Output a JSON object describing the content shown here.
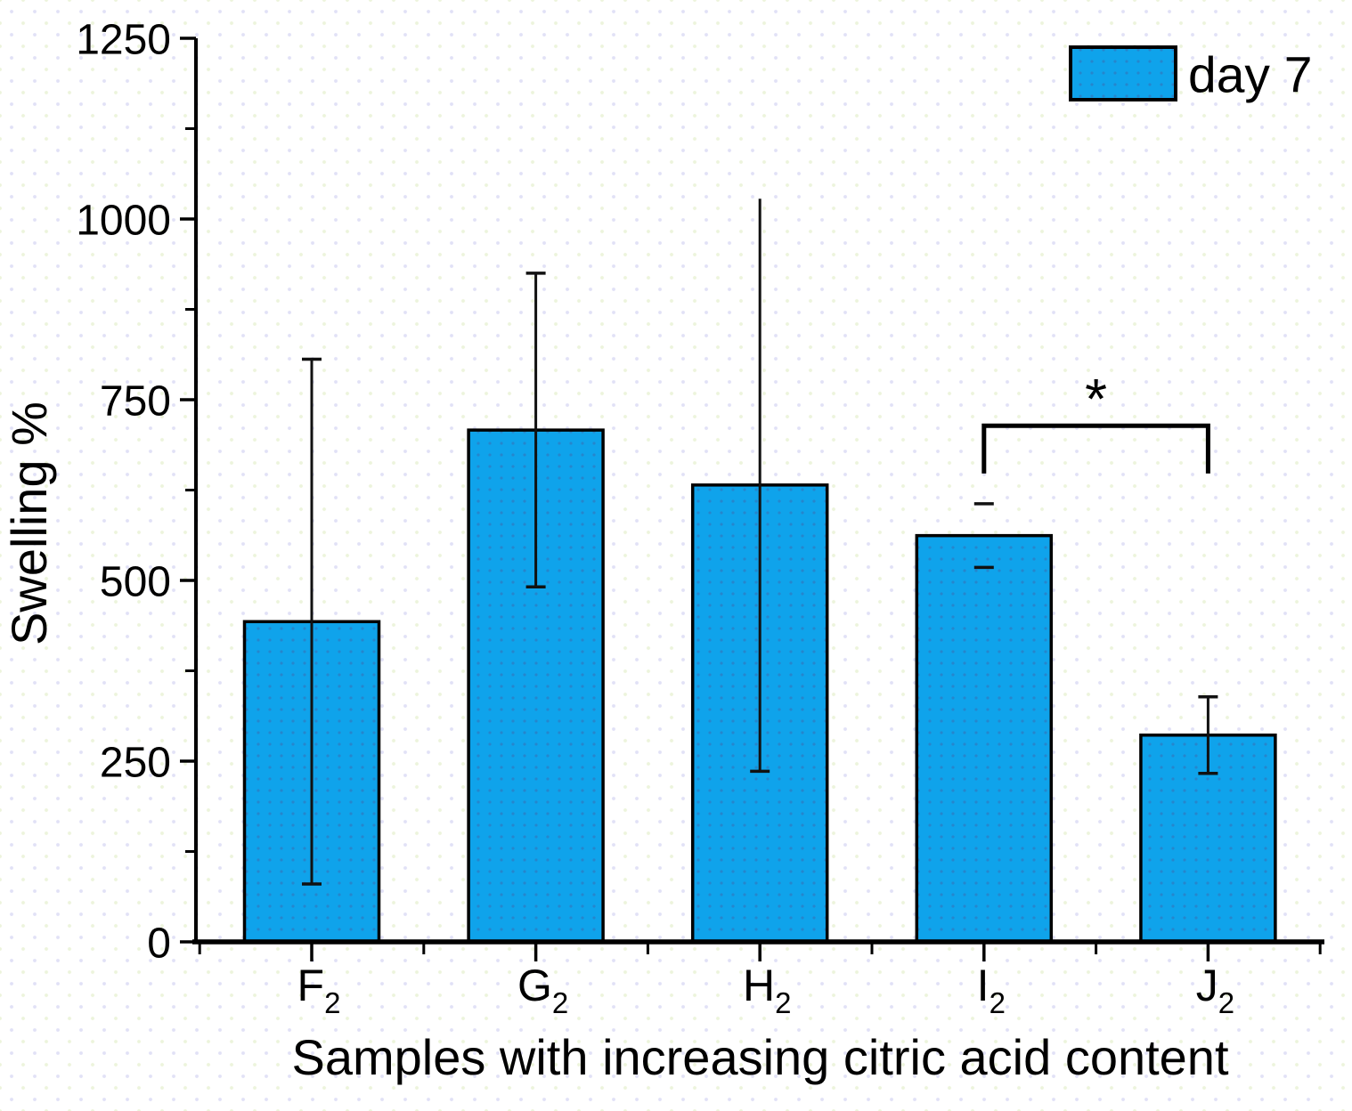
{
  "chart_data": {
    "type": "bar",
    "title": "",
    "xlabel": "Samples with increasing citric acid content",
    "ylabel": "Swelling %",
    "ylim": [
      0,
      1250
    ],
    "yticks": [
      0,
      250,
      500,
      750,
      1000,
      1250
    ],
    "y_minor_ticks": [
      125,
      375,
      625,
      875,
      1125
    ],
    "grid": false,
    "legend_position": "top-right",
    "legend": {
      "label": "day 7"
    },
    "categories": [
      {
        "base": "F",
        "sub": "2"
      },
      {
        "base": "G",
        "sub": "2"
      },
      {
        "base": "H",
        "sub": "2"
      },
      {
        "base": "I",
        "sub": "2"
      },
      {
        "base": "J",
        "sub": "2"
      }
    ],
    "series": [
      {
        "name": "day 7",
        "values": [
          443,
          708,
          632,
          562,
          286
        ],
        "errors": [
          363,
          217,
          396,
          44,
          53
        ],
        "error_caps": [
          "both",
          "both",
          "bottom",
          "caps-only",
          "both"
        ]
      }
    ],
    "significance": {
      "pair": [
        "I2",
        "J2"
      ],
      "label": "*",
      "bracket_y": 714,
      "bracket_drop_to": 648,
      "label_y": 724
    },
    "colors": {
      "bar_fill": "#0fa3eb",
      "bar_dot": "#2a7ec5",
      "bar_border": "#000000",
      "error_bar": "#111111",
      "axis": "#000000",
      "text": "#000000",
      "background": "#ffffff"
    }
  }
}
